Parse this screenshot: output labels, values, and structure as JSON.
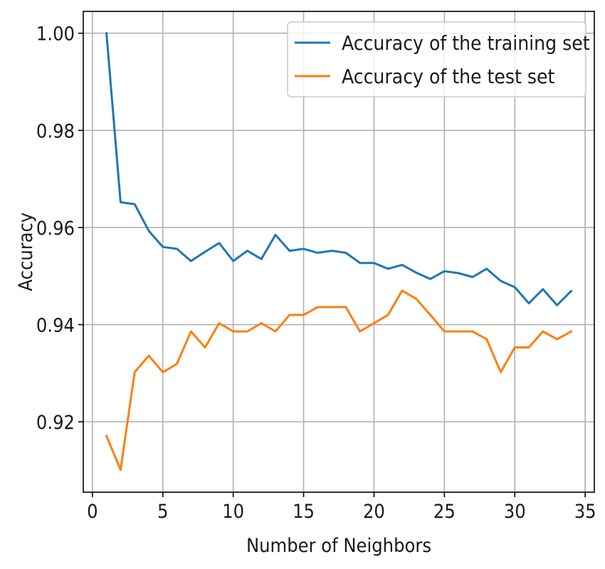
{
  "chart_data": {
    "type": "line",
    "title": "",
    "xlabel": "Number of Neighbors",
    "ylabel": "Accuracy",
    "xlim": [
      -0.65,
      35.65
    ],
    "ylim": [
      0.9055,
      1.0045
    ],
    "xticks": [
      0,
      5,
      10,
      15,
      20,
      25,
      30,
      35
    ],
    "yticks": [
      0.92,
      0.94,
      0.96,
      0.98,
      1.0
    ],
    "ytick_labels": [
      "0.92",
      "0.94",
      "0.96",
      "0.98",
      "1.00"
    ],
    "grid": true,
    "legend_position": "top-right",
    "x": [
      1,
      2,
      3,
      4,
      5,
      6,
      7,
      8,
      9,
      10,
      11,
      12,
      13,
      14,
      15,
      16,
      17,
      18,
      19,
      20,
      21,
      22,
      23,
      24,
      25,
      26,
      27,
      28,
      29,
      30,
      31,
      32,
      33,
      34
    ],
    "series": [
      {
        "name": "Accuracy of the training set",
        "color": "#1f77b4",
        "values": [
          1.0,
          0.9652,
          0.9648,
          0.9593,
          0.956,
          0.9556,
          0.9531,
          0.955,
          0.9568,
          0.9531,
          0.9552,
          0.9535,
          0.9585,
          0.9552,
          0.9556,
          0.9548,
          0.9552,
          0.9548,
          0.9527,
          0.9527,
          0.9515,
          0.9523,
          0.9507,
          0.9494,
          0.951,
          0.9506,
          0.9498,
          0.9515,
          0.949,
          0.9477,
          0.9444,
          0.9473,
          0.944,
          0.9469
        ]
      },
      {
        "name": "Accuracy of the test set",
        "color": "#ff7f0e",
        "values": [
          0.9171,
          0.9101,
          0.9302,
          0.9336,
          0.9302,
          0.9319,
          0.9386,
          0.9353,
          0.9403,
          0.9386,
          0.9386,
          0.9403,
          0.9386,
          0.942,
          0.942,
          0.9436,
          0.9436,
          0.9436,
          0.9386,
          0.9403,
          0.942,
          0.947,
          0.9453,
          0.942,
          0.9386,
          0.9386,
          0.9386,
          0.937,
          0.9302,
          0.9353,
          0.9353,
          0.9386,
          0.937,
          0.9386
        ]
      }
    ]
  }
}
